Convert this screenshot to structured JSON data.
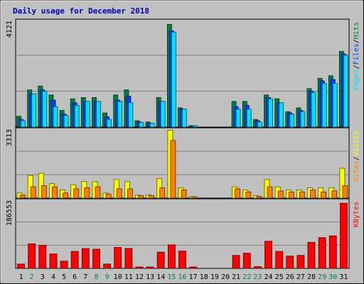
{
  "chart_data": {
    "type": "bar",
    "title": "Daily usage for December 2018",
    "days": [
      "1",
      "2",
      "3",
      "4",
      "5",
      "6",
      "7",
      "8",
      "9",
      "10",
      "11",
      "12",
      "13",
      "14",
      "15",
      "16",
      "17",
      "18",
      "19",
      "20",
      "21",
      "22",
      "23",
      "24",
      "25",
      "26",
      "27",
      "28",
      "29",
      "30",
      "31"
    ],
    "weekend_days": [
      2,
      8,
      9,
      15,
      16,
      22,
      23,
      29,
      30
    ],
    "colors": {
      "hits": "#008040",
      "files": "#0040ff",
      "pages": "#00e0ff",
      "visits": "#ffff00",
      "sites": "#ff8000",
      "kbytes": "#ff0000",
      "title": "#0000c0",
      "panel_bg": "#c0c0c0",
      "weekday_label": "#000000",
      "weekend_label": "#00805c"
    },
    "panels": [
      {
        "id": "hits_files_pages",
        "max_label": "4121",
        "ymax": 4121,
        "right_labels": [
          {
            "text": "Pages",
            "color": "#00e0ff"
          },
          {
            "text": "/",
            "color": "#000000"
          },
          {
            "text": "Files",
            "color": "#0040ff"
          },
          {
            "text": "/",
            "color": "#000000"
          },
          {
            "text": "Hits",
            "color": "#008040"
          }
        ],
        "series": [
          {
            "key": "hits",
            "values": [
              420,
              1450,
              1600,
              1250,
              650,
              1100,
              1150,
              1150,
              550,
              1250,
              1450,
              250,
              200,
              1150,
              4000,
              750,
              20,
              0,
              0,
              0,
              1000,
              1000,
              300,
              1250,
              1100,
              600,
              750,
              1500,
              1900,
              2000,
              2950
            ]
          },
          {
            "key": "files",
            "values": [
              300,
              1300,
              1450,
              1050,
              500,
              950,
              1000,
              1000,
              400,
              1050,
              1200,
              200,
              150,
              1000,
              3750,
              700,
              10,
              0,
              0,
              0,
              800,
              850,
              250,
              1150,
              950,
              550,
              650,
              1400,
              1800,
              1850,
              2850
            ]
          },
          {
            "key": "pages",
            "values": [
              250,
              1300,
              1400,
              800,
              450,
              850,
              1000,
              1000,
              300,
              1000,
              950,
              180,
              150,
              1000,
              3700,
              700,
              10,
              0,
              0,
              0,
              700,
              700,
              200,
              1100,
              950,
              500,
              600,
              1350,
              1700,
              1700,
              2800
            ]
          }
        ]
      },
      {
        "id": "visits_sites",
        "max_label": "3313",
        "ymax": 3313,
        "right_labels": [
          {
            "text": "Sites",
            "color": "#ff8000"
          },
          {
            "text": "/",
            "color": "#000000"
          },
          {
            "text": "Visits",
            "color": "#ffff00"
          }
        ],
        "series": [
          {
            "key": "visits",
            "values": [
              250,
              1100,
              1200,
              700,
              400,
              650,
              800,
              800,
              250,
              900,
              800,
              150,
              150,
              950,
              3300,
              500,
              20,
              0,
              0,
              0,
              550,
              400,
              120,
              900,
              550,
              400,
              400,
              500,
              500,
              500,
              1450
            ]
          },
          {
            "key": "sites",
            "values": [
              150,
              550,
              600,
              550,
              250,
              450,
              500,
              550,
              200,
              450,
              450,
              120,
              120,
              500,
              2800,
              400,
              15,
              0,
              0,
              0,
              450,
              300,
              80,
              550,
              350,
              300,
              300,
              400,
              300,
              350,
              600
            ]
          }
        ]
      },
      {
        "id": "kbytes",
        "max_label": "186553",
        "ymax": 186553,
        "right_labels": [
          {
            "text": "KBytes",
            "color": "#ff0000"
          }
        ],
        "series": [
          {
            "key": "kbytes",
            "values": [
              12000,
              68000,
              64000,
              40000,
              20000,
              47000,
              55000,
              53000,
              12000,
              58000,
              55000,
              3000,
              4000,
              45000,
              65000,
              48000,
              3000,
              0,
              0,
              0,
              36000,
              42000,
              5000,
              75000,
              47000,
              34000,
              36000,
              72000,
              85000,
              90000,
              180000
            ]
          }
        ]
      }
    ]
  }
}
